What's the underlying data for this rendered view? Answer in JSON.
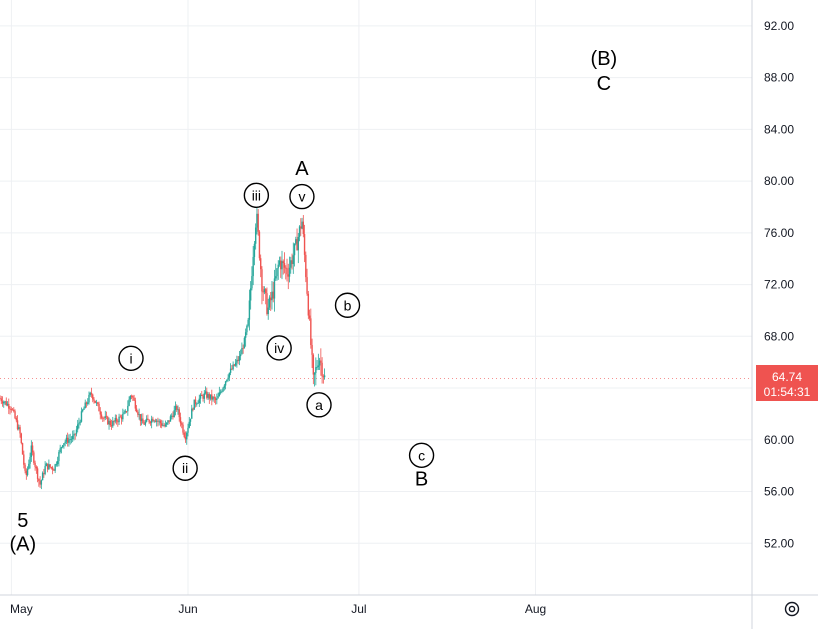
{
  "chart_data": {
    "type": "candlestick",
    "y_axis": {
      "ylim": [
        48.0,
        94.0
      ],
      "ticks": [
        "92.00",
        "88.00",
        "84.00",
        "80.00",
        "76.00",
        "72.00",
        "68.00",
        "64.00",
        "60.00",
        "56.00",
        "52.00"
      ]
    },
    "x_axis": {
      "ticks": [
        {
          "label": "May",
          "day": 0
        },
        {
          "label": "Jun",
          "day": 31
        },
        {
          "label": "Jul",
          "day": 61
        },
        {
          "label": "Aug",
          "day": 92
        }
      ],
      "xlim": [
        -2,
        130
      ]
    },
    "last_price": {
      "value": "64.74",
      "countdown": "01:54:31",
      "y": 64.74
    },
    "series_anchor": [
      {
        "day": -2,
        "price": 63.2
      },
      {
        "day": 0,
        "price": 62.5
      },
      {
        "day": 1.5,
        "price": 60.5
      },
      {
        "day": 2.5,
        "price": 57.0
      },
      {
        "day": 3.5,
        "price": 59.3
      },
      {
        "day": 5,
        "price": 56.5
      },
      {
        "day": 6,
        "price": 58.0
      },
      {
        "day": 7.5,
        "price": 57.8
      },
      {
        "day": 9,
        "price": 59.8
      },
      {
        "day": 11,
        "price": 60.2
      },
      {
        "day": 12.5,
        "price": 62.2
      },
      {
        "day": 14,
        "price": 63.6
      },
      {
        "day": 16,
        "price": 61.8
      },
      {
        "day": 17.5,
        "price": 61.2
      },
      {
        "day": 20,
        "price": 62.0
      },
      {
        "day": 21,
        "price": 63.6
      },
      {
        "day": 23,
        "price": 61.2
      },
      {
        "day": 25,
        "price": 61.7
      },
      {
        "day": 27,
        "price": 61.0
      },
      {
        "day": 29,
        "price": 62.5
      },
      {
        "day": 30.5,
        "price": 60.2
      },
      {
        "day": 32,
        "price": 62.8
      },
      {
        "day": 34,
        "price": 63.5
      },
      {
        "day": 36,
        "price": 63.0
      },
      {
        "day": 38,
        "price": 65.0
      },
      {
        "day": 40,
        "price": 66.3
      },
      {
        "day": 41.5,
        "price": 68.5
      },
      {
        "day": 42.5,
        "price": 75.0
      },
      {
        "day": 43,
        "price": 77.5
      },
      {
        "day": 44,
        "price": 72.0
      },
      {
        "day": 45,
        "price": 70.0
      },
      {
        "day": 46,
        "price": 71.5
      },
      {
        "day": 47,
        "price": 73.8
      },
      {
        "day": 48.5,
        "price": 73.0
      },
      {
        "day": 50,
        "price": 75.0
      },
      {
        "day": 51,
        "price": 77.0
      },
      {
        "day": 52,
        "price": 71.0
      },
      {
        "day": 53,
        "price": 64.5
      },
      {
        "day": 54,
        "price": 66.5
      },
      {
        "day": 55,
        "price": 64.74
      }
    ],
    "wave_labels": [
      {
        "text": "5",
        "day": 2.0,
        "price": 53.8,
        "style": "big"
      },
      {
        "text": "(A)",
        "day": 2.0,
        "price": 52.0,
        "style": "big"
      },
      {
        "text": "i",
        "day": 21.0,
        "price": 66.3,
        "style": "circle"
      },
      {
        "text": "ii",
        "day": 30.5,
        "price": 57.8,
        "style": "circle"
      },
      {
        "text": "iii",
        "day": 43.0,
        "price": 78.9,
        "style": "circle"
      },
      {
        "text": "iv",
        "day": 47.0,
        "price": 67.1,
        "style": "circle"
      },
      {
        "text": "A",
        "day": 51.0,
        "price": 81.0,
        "style": "big"
      },
      {
        "text": "v",
        "day": 51.0,
        "price": 78.8,
        "style": "circle"
      },
      {
        "text": "b",
        "day": 59.0,
        "price": 70.4,
        "style": "circle"
      },
      {
        "text": "a",
        "day": 54.0,
        "price": 62.7,
        "style": "circle"
      },
      {
        "text": "c",
        "day": 72.0,
        "price": 58.8,
        "style": "circle"
      },
      {
        "text": "B",
        "day": 72.0,
        "price": 57.0,
        "style": "big"
      },
      {
        "text": "(B)",
        "day": 104.0,
        "price": 89.5,
        "style": "big"
      },
      {
        "text": "C",
        "day": 104.0,
        "price": 87.6,
        "style": "big"
      }
    ],
    "colors": {
      "up": "#26a69a",
      "down": "#ef5350",
      "grid": "#eef0f3",
      "axis_line": "#d1d4dc",
      "text": "#131722",
      "price_label": "#ef5350"
    },
    "gear_icon": "settings-gear-icon"
  }
}
